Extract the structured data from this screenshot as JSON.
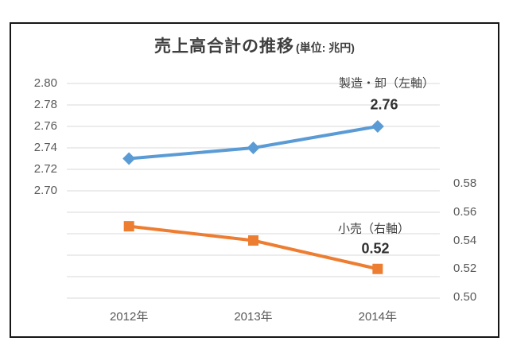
{
  "title": {
    "main": "売上高合計の推移",
    "unit": "(単位: 兆円)"
  },
  "chart_data": {
    "type": "line",
    "title": "売上高合計の推移",
    "unit_note": "単位: 兆円",
    "categories": [
      "2012年",
      "2013年",
      "2014年"
    ],
    "series": [
      {
        "name": "製造・卸（左軸）",
        "axis": "left",
        "values": [
          2.73,
          2.74,
          2.76
        ],
        "color": "#5B9BD5",
        "marker": "diamond",
        "data_label": {
          "point": "2014年",
          "text": "2.76"
        }
      },
      {
        "name": "小売（右軸）",
        "axis": "right",
        "values": [
          0.55,
          0.54,
          0.52
        ],
        "color": "#ED7D31",
        "marker": "square",
        "data_label": {
          "point": "2014年",
          "text": "0.52"
        }
      }
    ],
    "left_axis": {
      "ticks": [
        "2.80",
        "2.78",
        "2.76",
        "2.74",
        "2.72",
        "2.70"
      ],
      "tick_values": [
        2.8,
        2.78,
        2.76,
        2.74,
        2.72,
        2.7
      ],
      "labeled_range": [
        2.7,
        2.8
      ]
    },
    "right_axis": {
      "ticks": [
        "0.58",
        "0.56",
        "0.54",
        "0.52",
        "0.50"
      ],
      "tick_values": [
        0.58,
        0.56,
        0.54,
        0.52,
        0.5
      ],
      "labeled_range": [
        0.5,
        0.58
      ]
    },
    "grid": true,
    "gridline_color": "#D9D9D9",
    "legend_position": "inline-above-last-point"
  }
}
